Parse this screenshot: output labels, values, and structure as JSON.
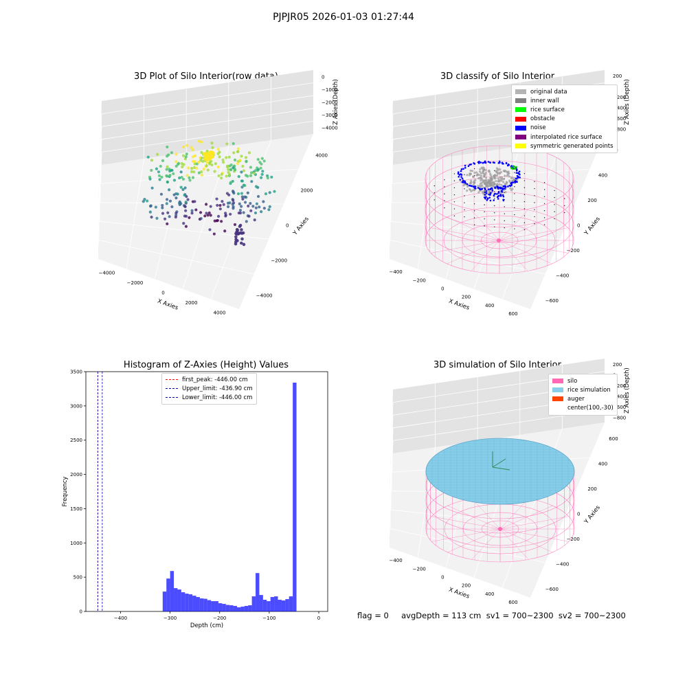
{
  "suptitle": "PJPJR05 2026-01-03 01:27:44",
  "panels": {
    "p1": {
      "title": "3D Plot of Silo Interior(row data)",
      "xlabel": "X Axies",
      "ylabel": "Y Axies",
      "zlabel": "Z Axies (Depth)",
      "xticks": [
        "−4000",
        "−2000",
        "0",
        "2000",
        "4000"
      ],
      "yticks": [
        "−4000",
        "−2000",
        "0",
        "2000",
        "4000"
      ],
      "zticks": [
        "0",
        "−1000",
        "−2000",
        "−3000",
        "−4000"
      ]
    },
    "p2": {
      "title": "3D classify of Silo Interior",
      "xlabel": "X Axies",
      "ylabel": "Y Axies",
      "zlabel": "Z Axies (Depth)",
      "xticks": [
        "−400",
        "−200",
        "0",
        "200",
        "400",
        "600"
      ],
      "yticks": [
        "−600",
        "−400",
        "−200",
        "0",
        "200",
        "400",
        "600"
      ],
      "zticks": [
        "200",
        "0",
        "−200",
        "−400",
        "−600",
        "−800"
      ],
      "legend": [
        {
          "label": "original data",
          "color": "#b3b3b3"
        },
        {
          "label": "inner wall",
          "color": "#808080"
        },
        {
          "label": "rice surface",
          "color": "#00ff00"
        },
        {
          "label": "obstacle",
          "color": "#ff0000"
        },
        {
          "label": "noise",
          "color": "#0000ff"
        },
        {
          "label": "interpolated rice surface",
          "color": "#800080"
        },
        {
          "label": "symmetric generated points",
          "color": "#ffff00"
        }
      ]
    },
    "p4": {
      "title": "3D simulation of Silo Interior",
      "xlabel": "X Axies",
      "ylabel": "Y Axies",
      "zlabel": "Z Axies (Depth)",
      "xticks": [
        "−400",
        "−200",
        "0",
        "200",
        "400",
        "600"
      ],
      "yticks": [
        "−600",
        "−400",
        "−200",
        "0",
        "200",
        "400",
        "600"
      ],
      "zticks": [
        "200",
        "0",
        "−200",
        "−400",
        "−600",
        "−800"
      ],
      "legend": [
        {
          "label": "silo",
          "color": "#ff69b4"
        },
        {
          "label": "rice simulation",
          "color": "#87ceeb"
        },
        {
          "label": "auger",
          "color": "#ff4500"
        },
        {
          "label": "center(100,-30)",
          "color": "transparent"
        }
      ]
    }
  },
  "footer": "flag = 0     avgDepth = 113 cm  sv1 = 700~2300  sv2 = 700~2300",
  "chart_data": {
    "type": "bar",
    "title": "Histogram of Z-Axies (Height) Values",
    "xlabel": "Depth (cm)",
    "ylabel": "Frequency",
    "xlim": [
      -470,
      18
    ],
    "ylim": [
      0,
      3500
    ],
    "xticks": [
      -400,
      -300,
      -200,
      -100,
      0
    ],
    "yticks": [
      0,
      500,
      1000,
      1500,
      2000,
      2500,
      3000,
      3500
    ],
    "bar_color": "#0000ff",
    "bin_width": 7.5,
    "x": [
      -311.25,
      -303.75,
      -296.25,
      -288.75,
      -281.25,
      -273.75,
      -266.25,
      -258.75,
      -251.25,
      -243.75,
      -236.25,
      -228.75,
      -221.25,
      -213.75,
      -206.25,
      -198.75,
      -191.25,
      -183.75,
      -176.25,
      -168.75,
      -161.25,
      -153.75,
      -146.25,
      -138.75,
      -131.25,
      -123.75,
      -116.25,
      -108.75,
      -101.25,
      -93.75,
      -86.25,
      -78.75,
      -71.25,
      -63.75,
      -56.25,
      -48.75,
      -41.25,
      -33.75,
      -26.25,
      -18.75,
      -11.25,
      -3.75
    ],
    "values": [
      290,
      480,
      590,
      340,
      320,
      280,
      260,
      250,
      230,
      210,
      190,
      185,
      165,
      150,
      150,
      120,
      110,
      95,
      90,
      80,
      60,
      70,
      80,
      90,
      220,
      560,
      240,
      170,
      150,
      210,
      220,
      170,
      160,
      180,
      220,
      3340,
      0,
      0,
      0,
      0,
      0,
      0
    ],
    "vlines": [
      {
        "label": "first_peak: -446.00 cm",
        "x": -446.0,
        "color": "#ff0000"
      },
      {
        "label": "Upper_limit: -436.90 cm",
        "x": -436.9,
        "color": "#0000aa"
      },
      {
        "label": "Lower_limit: -446.00 cm",
        "x": -446.0,
        "color": "#0000aa"
      }
    ]
  }
}
